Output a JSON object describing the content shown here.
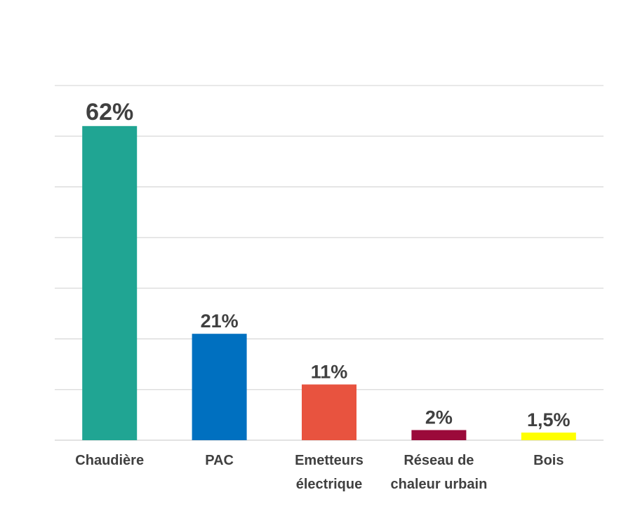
{
  "chart_data": {
    "type": "bar",
    "categories": [
      [
        "Chaudière"
      ],
      [
        "PAC"
      ],
      [
        "Emetteurs",
        "électrique"
      ],
      [
        "Réseau de",
        "chaleur urbain"
      ],
      [
        "Bois"
      ]
    ],
    "values": [
      62,
      21,
      11,
      2,
      1.5
    ],
    "data_labels": [
      "62%",
      "21%",
      "11%",
      "2%",
      "1,5%"
    ],
    "colors": [
      "#20a593",
      "#0070c0",
      "#e8533f",
      "#9b0a3a",
      "#ffff00"
    ],
    "ylim": [
      0,
      70
    ],
    "y_grid_step": 10,
    "grid": true,
    "legend": "none"
  }
}
